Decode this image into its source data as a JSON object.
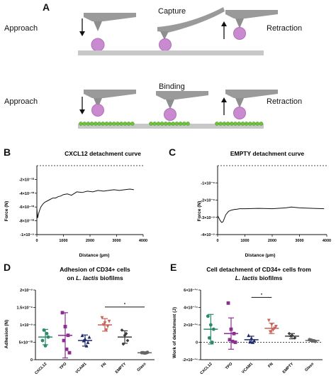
{
  "panel_labels": {
    "a": "A",
    "b": "B",
    "c": "C",
    "d": "D",
    "e": "E"
  },
  "schematic": {
    "row1": {
      "left": "Approach",
      "middle": "Capture",
      "right": "Retraction"
    },
    "row2": {
      "left": "Approach",
      "middle": "Binding",
      "right": "Retraction"
    },
    "colors": {
      "cantilever": "#9a9a9a",
      "cell": "#c98ad0",
      "surface": "#c8c8c8",
      "bead": "#6cc23c"
    }
  },
  "chart_data": [
    {
      "id": "B",
      "type": "line",
      "title": "CXCL12 detachment curve",
      "xlabel": "Distance (µm)",
      "ylabel": "Force (N)",
      "xlim": [
        0,
        4000
      ],
      "ylim": [
        -1e-09,
        0
      ],
      "x_ticks": [
        "0",
        "1000",
        "2000",
        "3000",
        "4000"
      ],
      "y_ticks": [
        "-2×10⁻¹⁰",
        "-4×10⁻¹⁰",
        "-6×10⁻¹⁰",
        "-8×10⁻¹⁰",
        "-1×10⁻⁹"
      ],
      "baseline": 0,
      "x": [
        0,
        30,
        60,
        100,
        150,
        220,
        300,
        400,
        500,
        600,
        700,
        800,
        900,
        1000,
        1150,
        1300,
        1500,
        1700,
        1900,
        2100,
        2300,
        2500,
        2700,
        2900,
        3100,
        3300,
        3500,
        3650
      ],
      "y": [
        -6.2e-10,
        -7.6e-10,
        -7e-10,
        -6.5e-10,
        -6e-10,
        -5.6e-10,
        -5.3e-10,
        -5.1e-10,
        -4.9e-10,
        -4.7e-10,
        -4.7e-10,
        -4.5e-10,
        -4.4e-10,
        -4.2e-10,
        -4.1e-10,
        -4.3e-10,
        -3.8e-10,
        -3.9e-10,
        -3.7e-10,
        -3.8e-10,
        -3.6e-10,
        -3.7e-10,
        -3.6e-10,
        -3.5e-10,
        -3.6e-10,
        -3.5e-10,
        -3.4e-10,
        -3.5e-10
      ],
      "color": "#111111"
    },
    {
      "id": "C",
      "type": "line",
      "title": "EMPTY detachment curve",
      "xlabel": "Distance (µm)",
      "ylabel": "Force (N)",
      "xlim": [
        0,
        4000
      ],
      "ylim": [
        -4e-09,
        0
      ],
      "x_ticks": [
        "0",
        "1000",
        "2000",
        "3000",
        "4000"
      ],
      "y_ticks": [
        "-1×10⁻⁹",
        "-2×10⁻⁹",
        "-3×10⁻⁹",
        "-4×10⁻⁹"
      ],
      "baseline": 0,
      "x": [
        0,
        50,
        100,
        150,
        200,
        250,
        300,
        350,
        400,
        500,
        600,
        700,
        800,
        1000,
        1500,
        2000,
        2500,
        2700,
        3000,
        3500,
        3900
      ],
      "y": [
        -2.9e-09,
        -3.05e-09,
        -3.2e-09,
        -3.3e-09,
        -3.25e-09,
        -3.05e-09,
        -2.85e-09,
        -2.75e-09,
        -2.65e-09,
        -2.58e-09,
        -2.55e-09,
        -2.53e-09,
        -2.5e-09,
        -2.5e-09,
        -2.48e-09,
        -2.5e-09,
        -2.45e-09,
        -2.4e-09,
        -2.45e-09,
        -2.48e-09,
        -2.5e-09
      ],
      "color": "#111111"
    },
    {
      "id": "D",
      "type": "scatter",
      "title": "Adhesion of CD34+ cells",
      "title_line2_a": "on ",
      "title_line2_b": "L. lactis",
      "title_line2_c": " biofilms",
      "ylabel": "Adhesion (N)",
      "ylim": [
        0,
        2e-09
      ],
      "y_ticks": [
        "0",
        "5×10⁻¹⁰",
        "1×10⁻⁹",
        "1.5×10⁻⁹",
        "2×10⁻⁹"
      ],
      "categories": [
        "CXCL12",
        "TPO",
        "VCAM1",
        "FN",
        "EMPTY",
        "Glass"
      ],
      "significance": {
        "from": "FN",
        "to": "Glass",
        "label": "*"
      },
      "groups": [
        {
          "name": "CXCL12",
          "color": "#2a8a6a",
          "mean": 6.5e-10,
          "sd": 2.2e-10,
          "points": [
            5.5e-10,
            4e-10,
            6.5e-10,
            8.5e-10,
            7.5e-10
          ]
        },
        {
          "name": "TPO",
          "color": "#8b2e8f",
          "mean": 7e-10,
          "sd": 6.5e-10,
          "points": [
            1.35e-09,
            9.5e-10,
            7e-10,
            5.5e-10,
            3e-10,
            2e-10
          ]
        },
        {
          "name": "VCAM1",
          "color": "#1f2b6b",
          "mean": 5.5e-10,
          "sd": 1.6e-10,
          "points": [
            7e-10,
            6e-10,
            5e-10,
            5.5e-10,
            4e-10,
            6.5e-10
          ]
        },
        {
          "name": "FN",
          "color": "#c8645a",
          "mean": 1e-09,
          "sd": 1.8e-10,
          "points": [
            1.2e-09,
            1.05e-09,
            9.5e-10,
            1e-09,
            8.5e-10,
            1.1e-09
          ]
        },
        {
          "name": "EMPTY",
          "color": "#3c3c3c",
          "mean": 6.5e-10,
          "sd": 1.8e-10,
          "points": [
            8.5e-10,
            7e-10,
            5.5e-10,
            4.5e-10,
            7.5e-10
          ]
        },
        {
          "name": "Glass",
          "color": "#666666",
          "mean": 2e-10,
          "sd": 2e-11,
          "points": [
            2e-10,
            1.9e-10,
            2.1e-10,
            2e-10,
            1.95e-10
          ]
        }
      ]
    },
    {
      "id": "E",
      "type": "scatter",
      "title": "Cell detachment of CD34+ cells from",
      "title_line2_a": "",
      "title_line2_b": "L. lactis",
      "title_line2_c": " biofilms",
      "ylabel": "Work of detachment (J)",
      "ylim": [
        -2e-14,
        6e-14
      ],
      "y_ticks": [
        "-2×10⁻¹⁴",
        "0",
        "2×10⁻¹⁴",
        "4×10⁻¹⁴",
        "6×10⁻¹⁴"
      ],
      "categories": [
        "CXCL12",
        "TPO",
        "VCAM1",
        "FN",
        "EMPTY",
        "Glass"
      ],
      "significance": {
        "from": "VCAM1",
        "to": "FN",
        "label": "*"
      },
      "groups": [
        {
          "name": "CXCL12",
          "color": "#2a8a6a",
          "mean": 1.5e-14,
          "sd": 1.7e-14,
          "points": [
            3e-14,
            2e-14,
            1.5e-14,
            5e-15,
            0
          ]
        },
        {
          "name": "TPO",
          "color": "#8b2e8f",
          "mean": 1e-14,
          "sd": 1.8e-14,
          "points": [
            4.5e-14,
            1.5e-14,
            1e-14,
            3e-15,
            1e-15,
            0
          ]
        },
        {
          "name": "VCAM1",
          "color": "#1f2b6b",
          "mean": 3e-15,
          "sd": 4e-15,
          "points": [
            8e-15,
            5e-15,
            2e-15,
            1e-15,
            0
          ]
        },
        {
          "name": "FN",
          "color": "#c8645a",
          "mean": 1.6e-14,
          "sd": 6e-15,
          "points": [
            2.5e-14,
            2e-14,
            1.6e-14,
            1.2e-14,
            1.4e-14,
            1.8e-14
          ]
        },
        {
          "name": "EMPTY",
          "color": "#3c3c3c",
          "mean": 7e-15,
          "sd": 3e-15,
          "points": [
            1e-14,
            8e-15,
            5e-15,
            7e-15
          ]
        },
        {
          "name": "Glass",
          "color": "#666666",
          "mean": 2e-15,
          "sd": 1e-15,
          "points": [
            3e-15,
            2e-15,
            1e-15,
            2.5e-15,
            1.5e-15
          ]
        }
      ]
    }
  ]
}
